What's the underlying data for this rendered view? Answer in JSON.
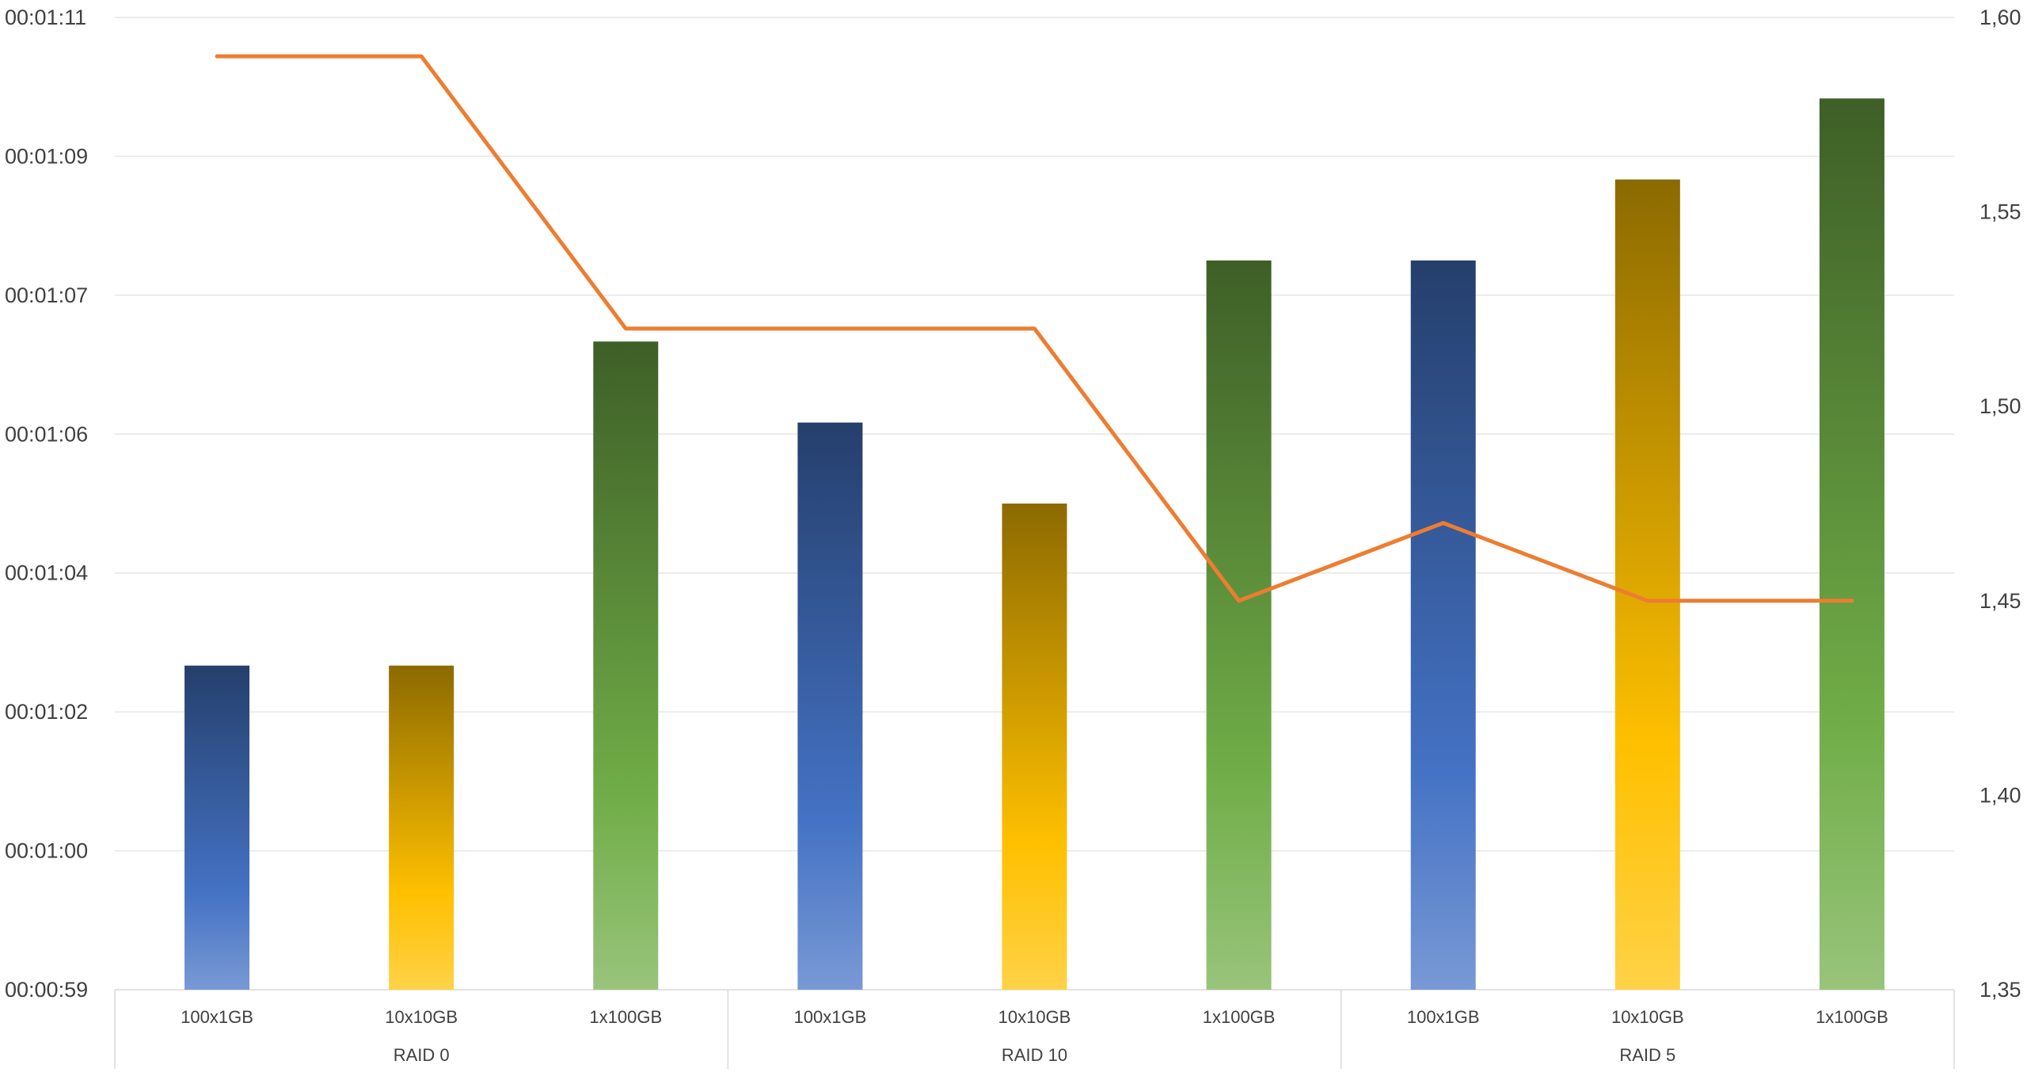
{
  "chart_data": {
    "type": "bar",
    "categories": [
      "100x1GB",
      "10x10GB",
      "1x100GB",
      "100x1GB",
      "10x10GB",
      "1x100GB",
      "100x1GB",
      "10x10GB",
      "1x100GB"
    ],
    "groups": [
      {
        "label": "RAID 0",
        "categories": [
          "100x1GB",
          "10x10GB",
          "1x100GB"
        ]
      },
      {
        "label": "RAID 10",
        "categories": [
          "100x1GB",
          "10x10GB",
          "1x100GB"
        ]
      },
      {
        "label": "RAID 5",
        "categories": [
          "100x1GB",
          "10x10GB",
          "1x100GB"
        ]
      }
    ],
    "series": [
      {
        "type": "bar",
        "axis": "left",
        "values": [
          "00:01:03",
          "00:01:03",
          "00:01:07",
          "00:01:06",
          "00:01:05",
          "00:01:08",
          "00:01:08",
          "00:01:09",
          "00:01:10"
        ],
        "values_seconds": [
          63,
          63,
          67,
          66,
          65,
          68,
          68,
          69,
          70
        ],
        "bar_colors": [
          "#4472c4",
          "#ffc000",
          "#70ad47",
          "#4472c4",
          "#ffc000",
          "#70ad47",
          "#4472c4",
          "#ffc000",
          "#70ad47"
        ]
      },
      {
        "type": "line",
        "axis": "right",
        "values": [
          1.59,
          1.59,
          1.52,
          1.52,
          1.52,
          1.45,
          1.47,
          1.45,
          1.45
        ],
        "color": "#ed7d31"
      }
    ],
    "y_left": {
      "ticks": [
        "00:00:59",
        "00:01:00",
        "00:01:02",
        "00:01:04",
        "00:01:06",
        "00:01:07",
        "00:01:09",
        "00:01:11"
      ],
      "range_seconds": [
        59,
        71
      ]
    },
    "y_right": {
      "ticks": [
        "1,35",
        "1,40",
        "1,45",
        "1,50",
        "1,55",
        "1,60"
      ],
      "range": [
        1.35,
        1.6
      ]
    },
    "grid": true,
    "legend": "none"
  }
}
